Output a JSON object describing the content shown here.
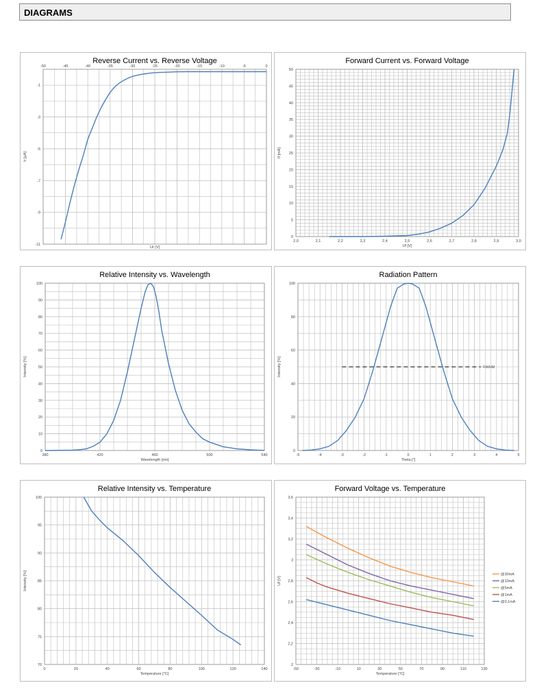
{
  "header": {
    "title": "DIAGRAMS"
  },
  "chart_data": [
    {
      "id": "reverse",
      "type": "line",
      "title": "Reverse Current vs. Reverse Voltage",
      "xlabel": "Ur [V]",
      "ylabel": "Ir [µA]",
      "xlim": [
        -50,
        0
      ],
      "ylim": [
        -11,
        0
      ],
      "xticks": [
        -50,
        -45,
        -40,
        -35,
        -30,
        -25,
        -20,
        -15,
        -10,
        -5,
        0
      ],
      "yticks": [
        -11,
        -9,
        -7,
        -5,
        -3,
        -1
      ],
      "x_axis_top": true,
      "grid": true,
      "series": [
        {
          "color": "#4a7ebb",
          "x": [
            -46,
            -45,
            -44,
            -43,
            -42,
            -41,
            -40,
            -39,
            -38,
            -37,
            -36,
            -35,
            -34,
            -33,
            -32,
            -31,
            -30,
            -29,
            -28,
            -27,
            -26,
            -25,
            -24,
            -23,
            -22,
            -21,
            -20,
            -18,
            -15,
            -10,
            -5,
            0
          ],
          "y": [
            -10.7,
            -9.6,
            -8.4,
            -7.3,
            -6.3,
            -5.4,
            -4.4,
            -3.7,
            -3.0,
            -2.4,
            -1.9,
            -1.45,
            -1.12,
            -0.88,
            -0.7,
            -0.56,
            -0.45,
            -0.38,
            -0.32,
            -0.28,
            -0.24,
            -0.22,
            -0.2,
            -0.19,
            -0.18,
            -0.17,
            -0.16,
            -0.15,
            -0.15,
            -0.15,
            -0.15,
            -0.15
          ]
        }
      ]
    },
    {
      "id": "forward",
      "type": "line",
      "title": "Forward Current vs. Forward Voltage",
      "xlabel": "Uf [V]",
      "ylabel": "If [mA]",
      "xlim": [
        2.0,
        3.0
      ],
      "ylim": [
        0,
        50
      ],
      "xticks": [
        "2,0",
        "2,1",
        "2,2",
        "2,3",
        "2,4",
        "2,5",
        "2,6",
        "2,7",
        "2,8",
        "2,9",
        "3,0"
      ],
      "yticks": [
        0,
        5,
        10,
        15,
        20,
        25,
        30,
        35,
        40,
        45,
        50
      ],
      "grid": true,
      "series": [
        {
          "color": "#4a7ebb",
          "x": [
            2.15,
            2.3,
            2.4,
            2.5,
            2.55,
            2.6,
            2.65,
            2.7,
            2.75,
            2.8,
            2.85,
            2.9,
            2.93,
            2.95,
            2.96,
            2.97,
            2.98
          ],
          "y": [
            0,
            0,
            0.1,
            0.3,
            0.7,
            1.4,
            2.5,
            4,
            6.3,
            9.5,
            14.5,
            21,
            26,
            31,
            36,
            43,
            50
          ]
        }
      ]
    },
    {
      "id": "wavelength",
      "type": "line",
      "title": "Relative Intensity vs. Wavelength",
      "xlabel": "Wavelength  [nm]",
      "ylabel": "Intensity [%]",
      "xlim": [
        380,
        540
      ],
      "ylim": [
        0,
        100
      ],
      "xticks": [
        380,
        420,
        460,
        500,
        540
      ],
      "yticks": [
        0,
        10,
        20,
        30,
        40,
        50,
        60,
        70,
        80,
        90,
        100
      ],
      "grid": true,
      "series": [
        {
          "color": "#4a7ebb",
          "x": [
            380,
            400,
            405,
            410,
            415,
            420,
            425,
            430,
            435,
            440,
            445,
            450,
            453,
            455,
            457,
            459,
            461,
            463,
            465,
            470,
            475,
            480,
            485,
            490,
            495,
            500,
            510,
            520,
            530,
            540
          ],
          "y": [
            0,
            0.2,
            0.5,
            1,
            2.5,
            5,
            10,
            18,
            30,
            47,
            66,
            85,
            95,
            99,
            100,
            98,
            92,
            83,
            72,
            52,
            36,
            24,
            16,
            11,
            7,
            5,
            2.2,
            1,
            0.4,
            0.1
          ]
        }
      ]
    },
    {
      "id": "radiation",
      "type": "line",
      "title": "Radiation Pattern",
      "xlabel": "Theta  [°]",
      "ylabel": "Intensity [%]",
      "xlim": [
        -5,
        5
      ],
      "ylim": [
        0,
        100
      ],
      "xticks": [
        -5,
        -4,
        -3,
        -2,
        -1,
        0,
        1,
        2,
        3,
        4,
        5
      ],
      "yticks": [
        0,
        20,
        40,
        60,
        80,
        100
      ],
      "grid": true,
      "annotation": {
        "text": "FWHM",
        "y": 50,
        "x_from": -3,
        "x_to": 3.3
      },
      "series": [
        {
          "color": "#4a7ebb",
          "x": [
            -4.8,
            -4.4,
            -4,
            -3.6,
            -3.2,
            -2.8,
            -2.4,
            -2,
            -1.6,
            -1.2,
            -0.8,
            -0.5,
            -0.2,
            0,
            0.2,
            0.5,
            0.8,
            1.2,
            1.6,
            2,
            2.4,
            2.8,
            3.2,
            3.6,
            4,
            4.4,
            4.8
          ],
          "y": [
            0,
            0.3,
            1,
            2.5,
            6,
            12,
            20,
            31,
            48,
            67,
            86,
            97,
            99.5,
            100,
            99.5,
            97,
            86,
            67,
            48,
            31,
            20,
            12,
            6,
            2.5,
            1,
            0.3,
            0
          ]
        }
      ]
    },
    {
      "id": "temp_intensity",
      "type": "line",
      "title": "Relative Intensity vs. Temperature",
      "xlabel": "Temperature  [°C]",
      "ylabel": "Intensity [%]",
      "xlim": [
        0,
        140
      ],
      "ylim": [
        70,
        100
      ],
      "xticks": [
        0,
        20,
        40,
        60,
        80,
        100,
        120,
        140
      ],
      "yticks": [
        70,
        75,
        80,
        85,
        90,
        95,
        100
      ],
      "grid": true,
      "series": [
        {
          "color": "#4a7ebb",
          "x": [
            25,
            27,
            30,
            35,
            40,
            50,
            60,
            70,
            80,
            90,
            100,
            110,
            120,
            125
          ],
          "y": [
            100,
            99,
            97.5,
            95.9,
            94.5,
            92.2,
            89.5,
            86.5,
            83.8,
            81.3,
            78.8,
            76.2,
            74.5,
            73.5
          ]
        }
      ]
    },
    {
      "id": "temp_voltage",
      "type": "line",
      "title": "Forward Voltage vs. Temperature",
      "xlabel": "Temperature  [°C]",
      "ylabel": "Uf [V]",
      "xlim": [
        -50,
        130
      ],
      "ylim": [
        2,
        3.6
      ],
      "xticks": [
        "-50",
        "-30",
        "-10",
        "10",
        "30",
        "50",
        "70",
        "90",
        "110",
        "130"
      ],
      "yticks": [
        "2",
        "2,2",
        "2,4",
        "2,6",
        "2,8",
        "3",
        "3,2",
        "3,4",
        "3,6"
      ],
      "legend": "right",
      "grid": true,
      "series": [
        {
          "name": "@30mA",
          "color": "#f79646",
          "x": [
            -40,
            -20,
            0,
            20,
            40,
            60,
            80,
            100,
            120
          ],
          "y": [
            3.32,
            3.21,
            3.11,
            3.02,
            2.94,
            2.88,
            2.83,
            2.79,
            2.75
          ]
        },
        {
          "name": "@10mA",
          "color": "#8064a2",
          "x": [
            -40,
            -30,
            -20,
            -10,
            0,
            20,
            40,
            60,
            80,
            100,
            110,
            120
          ],
          "y": [
            3.15,
            3.1,
            3.05,
            3.0,
            2.95,
            2.87,
            2.8,
            2.75,
            2.71,
            2.67,
            2.65,
            2.63
          ]
        },
        {
          "name": "@5mA",
          "color": "#9bbb59",
          "x": [
            -40,
            -20,
            0,
            20,
            40,
            60,
            80,
            100,
            120
          ],
          "y": [
            3.05,
            2.96,
            2.88,
            2.81,
            2.75,
            2.69,
            2.64,
            2.6,
            2.56
          ]
        },
        {
          "name": "@1mA",
          "color": "#c0504d",
          "x": [
            -40,
            -30,
            -20,
            0,
            20,
            40,
            60,
            80,
            100,
            120
          ],
          "y": [
            2.83,
            2.78,
            2.74,
            2.68,
            2.63,
            2.58,
            2.54,
            2.5,
            2.47,
            2.43
          ]
        },
        {
          "name": "@0,1mA",
          "color": "#4a7ebb",
          "x": [
            -40,
            -20,
            0,
            20,
            40,
            60,
            80,
            100,
            120
          ],
          "y": [
            2.62,
            2.57,
            2.52,
            2.47,
            2.42,
            2.38,
            2.34,
            2.3,
            2.27
          ]
        }
      ]
    }
  ]
}
